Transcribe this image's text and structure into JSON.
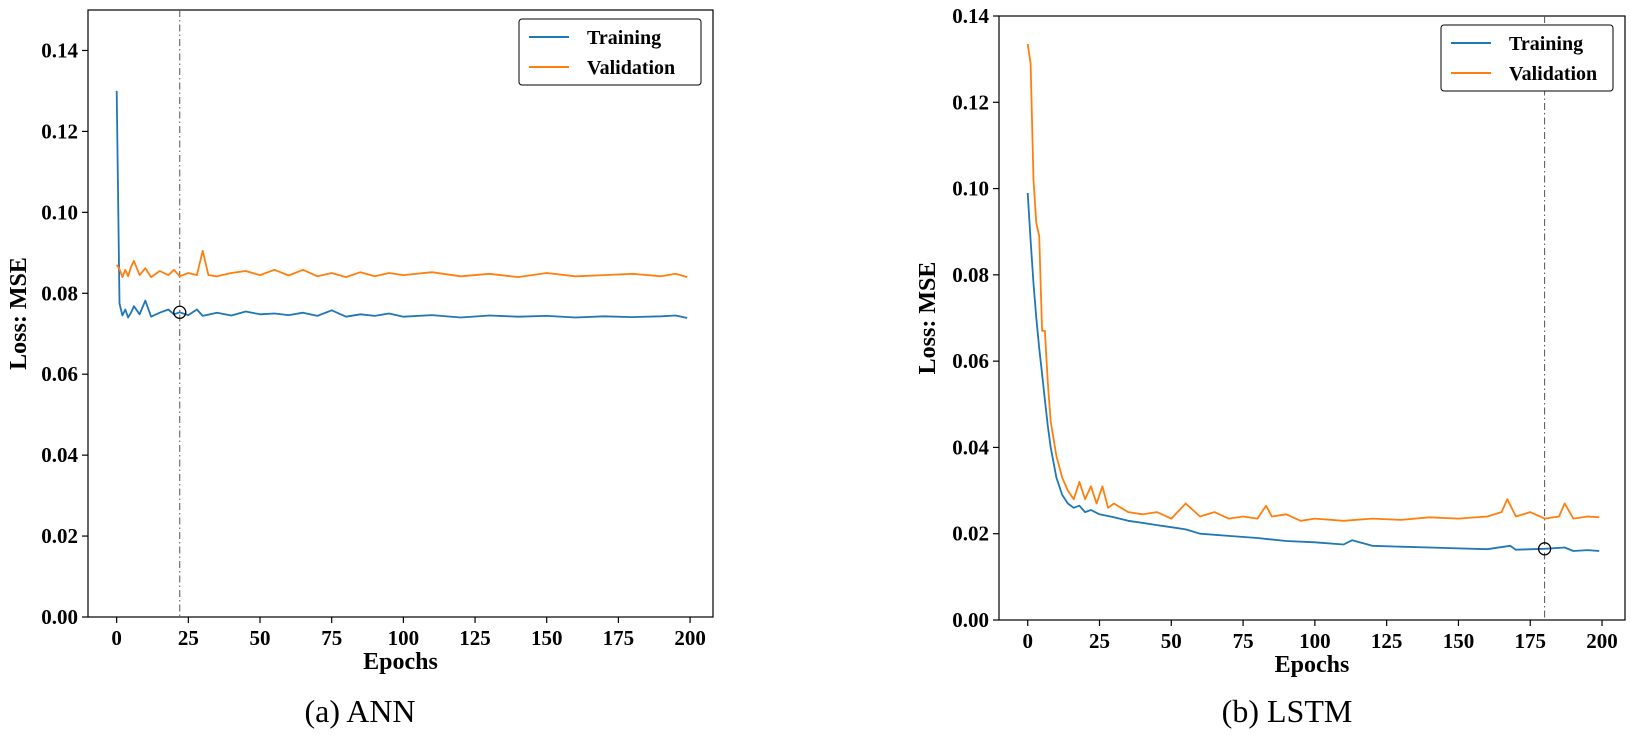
{
  "colors": {
    "training": "#1f77b4",
    "validation": "#ff7f0e",
    "marker": "#000000",
    "vline": "#555555"
  },
  "chart_data": [
    {
      "type": "line",
      "caption": "(a) ANN",
      "xlabel": "Epochs",
      "ylabel": "Loss: MSE",
      "xlim": [
        -10,
        208
      ],
      "ylim": [
        0,
        0.15
      ],
      "xticks": [
        0,
        25,
        50,
        75,
        100,
        125,
        150,
        175,
        200
      ],
      "yticks": [
        0.0,
        0.02,
        0.04,
        0.06,
        0.08,
        0.1,
        0.12,
        0.14
      ],
      "legend": "top-right",
      "best_epoch": 22,
      "best_value": 0.0753,
      "series": [
        {
          "name": "Training",
          "color": "#1f77b4",
          "x": [
            0,
            1,
            2,
            3,
            4,
            5,
            6,
            8,
            10,
            12,
            15,
            18,
            20,
            22,
            25,
            28,
            30,
            35,
            40,
            45,
            50,
            55,
            60,
            65,
            70,
            75,
            80,
            85,
            90,
            95,
            100,
            110,
            120,
            130,
            140,
            150,
            160,
            170,
            180,
            190,
            195,
            199
          ],
          "y": [
            0.13,
            0.0775,
            0.0745,
            0.076,
            0.074,
            0.0752,
            0.0768,
            0.0748,
            0.0782,
            0.0742,
            0.0752,
            0.076,
            0.0748,
            0.0753,
            0.0746,
            0.076,
            0.0744,
            0.0752,
            0.0745,
            0.0755,
            0.0748,
            0.075,
            0.0746,
            0.0752,
            0.0744,
            0.0758,
            0.0742,
            0.0748,
            0.0744,
            0.075,
            0.0742,
            0.0746,
            0.074,
            0.0745,
            0.0742,
            0.0744,
            0.074,
            0.0743,
            0.0741,
            0.0743,
            0.0745,
            0.0739
          ]
        },
        {
          "name": "Validation",
          "color": "#ff7f0e",
          "x": [
            0,
            1,
            2,
            3,
            4,
            5,
            6,
            8,
            10,
            12,
            15,
            18,
            20,
            22,
            25,
            28,
            30,
            32,
            35,
            40,
            45,
            50,
            55,
            60,
            65,
            70,
            75,
            80,
            85,
            90,
            95,
            100,
            110,
            120,
            130,
            140,
            150,
            160,
            170,
            180,
            190,
            195,
            199
          ],
          "y": [
            0.087,
            0.086,
            0.084,
            0.0858,
            0.0842,
            0.0865,
            0.088,
            0.0845,
            0.0862,
            0.084,
            0.0855,
            0.0845,
            0.0858,
            0.0842,
            0.085,
            0.0845,
            0.0905,
            0.0845,
            0.0842,
            0.085,
            0.0855,
            0.0845,
            0.0858,
            0.0844,
            0.0858,
            0.0842,
            0.085,
            0.084,
            0.0852,
            0.0842,
            0.085,
            0.0845,
            0.0852,
            0.0842,
            0.0848,
            0.084,
            0.085,
            0.0842,
            0.0845,
            0.0848,
            0.0842,
            0.0848,
            0.084
          ]
        }
      ]
    },
    {
      "type": "line",
      "caption": "(b) LSTM",
      "xlabel": "Epochs",
      "ylabel": "Loss: MSE",
      "xlim": [
        -10,
        208
      ],
      "ylim": [
        0,
        0.14
      ],
      "xticks": [
        0,
        25,
        50,
        75,
        100,
        125,
        150,
        175,
        200
      ],
      "yticks": [
        0.0,
        0.02,
        0.04,
        0.06,
        0.08,
        0.1,
        0.12,
        0.14
      ],
      "legend": "top-right",
      "best_epoch": 180,
      "best_value": 0.0165,
      "series": [
        {
          "name": "Training",
          "color": "#1f77b4",
          "x": [
            0,
            1,
            2,
            3,
            4,
            5,
            6,
            7,
            8,
            10,
            12,
            14,
            16,
            18,
            20,
            22,
            25,
            30,
            35,
            40,
            45,
            50,
            55,
            60,
            70,
            80,
            90,
            100,
            110,
            113,
            120,
            130,
            140,
            150,
            160,
            168,
            170,
            180,
            187,
            190,
            195,
            199
          ],
          "y": [
            0.099,
            0.088,
            0.078,
            0.07,
            0.063,
            0.057,
            0.051,
            0.045,
            0.04,
            0.033,
            0.029,
            0.027,
            0.026,
            0.0265,
            0.025,
            0.0255,
            0.0245,
            0.0238,
            0.023,
            0.0225,
            0.022,
            0.0215,
            0.021,
            0.02,
            0.0195,
            0.019,
            0.0183,
            0.018,
            0.0175,
            0.0185,
            0.0172,
            0.017,
            0.0168,
            0.0166,
            0.0164,
            0.0172,
            0.0163,
            0.0165,
            0.0168,
            0.016,
            0.0162,
            0.016
          ]
        },
        {
          "name": "Validation",
          "color": "#ff7f0e",
          "x": [
            0,
            1,
            2,
            3,
            4,
            5,
            6,
            7,
            8,
            10,
            12,
            14,
            16,
            18,
            20,
            22,
            24,
            26,
            28,
            30,
            35,
            40,
            45,
            50,
            55,
            60,
            65,
            70,
            75,
            80,
            83,
            85,
            90,
            95,
            100,
            110,
            120,
            130,
            140,
            150,
            160,
            165,
            167,
            170,
            175,
            180,
            185,
            187,
            190,
            195,
            199
          ],
          "y": [
            0.1335,
            0.129,
            0.102,
            0.092,
            0.089,
            0.067,
            0.067,
            0.055,
            0.046,
            0.038,
            0.033,
            0.03,
            0.028,
            0.032,
            0.028,
            0.031,
            0.027,
            0.031,
            0.026,
            0.027,
            0.025,
            0.0245,
            0.025,
            0.0235,
            0.027,
            0.024,
            0.025,
            0.0235,
            0.024,
            0.0235,
            0.0265,
            0.024,
            0.0245,
            0.023,
            0.0235,
            0.023,
            0.0235,
            0.0232,
            0.0238,
            0.0235,
            0.024,
            0.025,
            0.028,
            0.024,
            0.025,
            0.0235,
            0.024,
            0.027,
            0.0235,
            0.024,
            0.0238
          ]
        }
      ]
    }
  ]
}
